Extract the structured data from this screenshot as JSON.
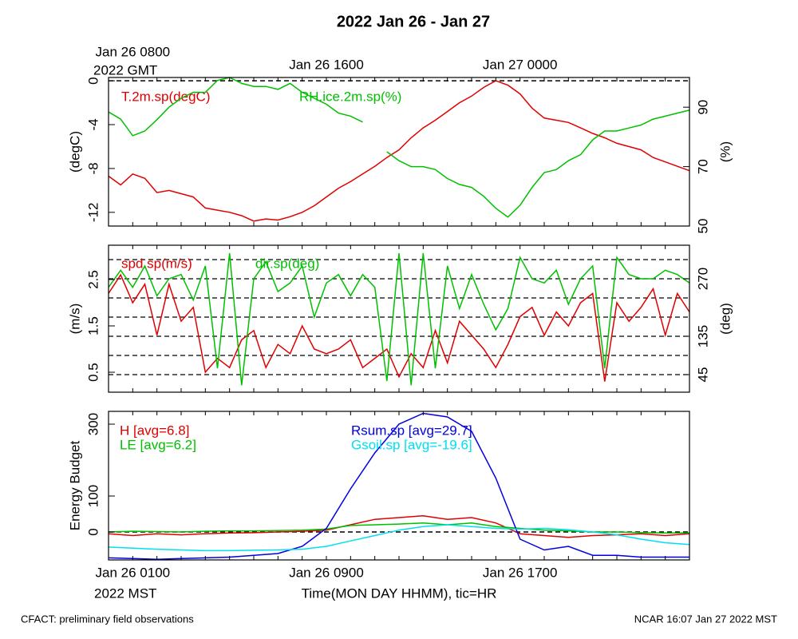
{
  "title": "2022 Jan 26 - Jan 27",
  "footer_left": "CFACT: preliminary field observations",
  "footer_right": "NCAR 16:07 Jan 27 2022 MST",
  "time_axis": {
    "xlabel": "Time(MON DAY HHMM), tic=HR",
    "xlim": [
      0,
      24
    ],
    "xticks": [
      {
        "value": 1,
        "label": "Jan 26 0100"
      },
      {
        "value": 9,
        "label": "Jan 26 0900"
      },
      {
        "value": 17,
        "label": "Jan 26 1700"
      }
    ],
    "x_zone": "2022 MST",
    "x2ticks": [
      {
        "value": 1,
        "label": "Jan 26 0800"
      },
      {
        "value": 9,
        "label": "Jan 26 1600"
      },
      {
        "value": 17,
        "label": "Jan 27 0000"
      }
    ],
    "x2_zone": "2022 GMT",
    "xminor_ticks": [
      0,
      1,
      2,
      3,
      4,
      5,
      6,
      7,
      8,
      9,
      10,
      11,
      12,
      13,
      14,
      15,
      16,
      17,
      18,
      19,
      20,
      21,
      22,
      23,
      24
    ]
  },
  "chart_data": [
    {
      "type": "line",
      "ylabel": "(degC)",
      "ylim": [
        -13.25,
        0.3
      ],
      "yticks": [
        0,
        -4,
        -8,
        -12
      ],
      "ygrid": [
        0
      ],
      "y2label": "(%)",
      "y2lim": [
        50,
        100
      ],
      "y2ticks": [
        50,
        70,
        90
      ],
      "x": [
        0,
        0.5,
        1,
        1.5,
        2,
        2.5,
        3,
        3.5,
        4,
        4.5,
        5,
        5.5,
        6,
        6.5,
        7,
        7.5,
        8,
        8.5,
        9,
        9.5,
        10,
        10.5,
        11,
        11.5,
        12,
        12.5,
        13,
        13.5,
        14,
        14.5,
        15,
        15.5,
        16,
        16.5,
        17,
        17.5,
        18,
        18.5,
        19,
        19.5,
        20,
        20.5,
        21,
        21.5,
        22,
        22.5,
        23,
        23.5,
        24
      ],
      "series": [
        {
          "name": "T.2m.sp(degC)",
          "color": "#e00000",
          "axis": "y",
          "values": [
            -8.7,
            -9.5,
            -8.5,
            -8.9,
            -10.2,
            -10.0,
            -10.3,
            -10.6,
            -11.6,
            -11.8,
            -12.0,
            -12.3,
            -12.8,
            -12.6,
            -12.7,
            -12.4,
            -12.0,
            -11.4,
            -10.6,
            -9.8,
            -9.2,
            -8.5,
            -7.8,
            -7.0,
            -6.3,
            -5.2,
            -4.3,
            -3.6,
            -2.8,
            -2.0,
            -1.4,
            -0.6,
            0.0,
            -0.4,
            -1.2,
            -2.5,
            -3.4,
            -3.6,
            -3.8,
            -4.3,
            -4.8,
            -5.2,
            -5.7,
            -6.0,
            -6.3,
            -7.0,
            -7.4,
            -7.8,
            -8.2
          ]
        },
        {
          "name": "RH.ice.2m.sp(%)",
          "color": "#00c000",
          "axis": "y2",
          "values": [
            88.4,
            86,
            80.4,
            82,
            85.8,
            90,
            93,
            95,
            95,
            99,
            100,
            98,
            97,
            97,
            96,
            98,
            95,
            93,
            91,
            88,
            87,
            85,
            null,
            75,
            72,
            70,
            70,
            69,
            66,
            64,
            63,
            60,
            56,
            53,
            57,
            63,
            68,
            69,
            72,
            74,
            79,
            82,
            82,
            83,
            84,
            86,
            87,
            88,
            89
          ]
        }
      ]
    },
    {
      "type": "line",
      "ylabel": "(m/s)",
      "ylim": [
        0.07,
        3.24
      ],
      "yticks": [
        0.5,
        1.5,
        2.5
      ],
      "y2label": "(deg)",
      "y2lim": [
        3.75,
        348.75
      ],
      "y2ticks": [
        45,
        135,
        270
      ],
      "y2grid": [
        45,
        90,
        135,
        180,
        225,
        270,
        315
      ],
      "x": [
        0,
        0.5,
        1,
        1.5,
        2,
        2.5,
        3,
        3.5,
        4,
        4.5,
        5,
        5.5,
        6,
        6.5,
        7,
        7.5,
        8,
        8.5,
        9,
        9.5,
        10,
        10.5,
        11,
        11.5,
        12,
        12.5,
        13,
        13.5,
        14,
        14.5,
        15,
        15.5,
        16,
        16.5,
        17,
        17.5,
        18,
        18.5,
        19,
        19.5,
        20,
        20.5,
        21,
        21.5,
        22,
        22.5,
        23,
        23.5,
        24
      ],
      "series": [
        {
          "name": "spd.sp(m/s)",
          "color": "#e00000",
          "axis": "y",
          "values": [
            2.2,
            2.6,
            2.0,
            2.4,
            1.3,
            2.4,
            1.6,
            1.9,
            0.5,
            0.8,
            0.6,
            1.2,
            1.4,
            0.6,
            1.1,
            0.9,
            1.5,
            1.0,
            0.9,
            1.0,
            1.2,
            0.6,
            0.8,
            1.0,
            0.4,
            0.9,
            0.6,
            1.4,
            0.7,
            1.6,
            1.3,
            1.0,
            0.6,
            1.1,
            1.7,
            1.9,
            1.3,
            1.8,
            1.5,
            2.0,
            2.2,
            0.3,
            2.0,
            1.6,
            1.9,
            2.3,
            1.3,
            2.2,
            1.8
          ]
        },
        {
          "name": "dir.sp(deg)",
          "color": "#00c000",
          "axis": "y2",
          "values": [
            250,
            290,
            250,
            300,
            230,
            270,
            280,
            220,
            300,
            60,
            330,
            20,
            270,
            310,
            240,
            260,
            300,
            180,
            260,
            280,
            230,
            280,
            250,
            30,
            330,
            20,
            330,
            60,
            300,
            200,
            280,
            210,
            150,
            200,
            320,
            270,
            260,
            290,
            210,
            270,
            300,
            60,
            320,
            280,
            270,
            270,
            290,
            280,
            260
          ]
        }
      ]
    },
    {
      "type": "line",
      "ylabel": "Energy Budget",
      "ylim": [
        -77.8,
        335.6
      ],
      "yticks": [
        0,
        100,
        300
      ],
      "ygrid": [
        0
      ],
      "x": [
        0,
        1,
        2,
        3,
        4,
        5,
        6,
        7,
        8,
        9,
        10,
        11,
        12,
        13,
        14,
        15,
        16,
        17,
        18,
        19,
        20,
        21,
        22,
        23,
        24
      ],
      "series": [
        {
          "name": "H [avg=6.8]",
          "color": "#e00000",
          "axis": "y",
          "values": [
            -5,
            -10,
            -5,
            -8,
            -5,
            -3,
            -2,
            0,
            2,
            5,
            20,
            35,
            40,
            45,
            35,
            40,
            25,
            -5,
            -10,
            -15,
            -10,
            -8,
            -5,
            -10,
            -5
          ]
        },
        {
          "name": "LE [avg=6.2]",
          "color": "#00c000",
          "axis": "y",
          "values": [
            0,
            2,
            1,
            0,
            2,
            3,
            3,
            4,
            5,
            8,
            18,
            20,
            22,
            25,
            20,
            25,
            15,
            10,
            5,
            3,
            0,
            0,
            -2,
            -3,
            -3
          ]
        },
        {
          "name": "Rsum.sp [avg=29.7]",
          "color": "#0000e0",
          "axis": "y",
          "values": [
            -72,
            -74,
            -76,
            -74,
            -72,
            -70,
            -65,
            -60,
            -40,
            10,
            120,
            220,
            300,
            330,
            320,
            280,
            150,
            -20,
            -50,
            -40,
            -65,
            -65,
            -70,
            -70,
            -70
          ]
        },
        {
          "name": "Gsoil.sp [avg=-19.6]",
          "color": "#00e0f0",
          "axis": "y",
          "values": [
            -42,
            -45,
            -48,
            -50,
            -52,
            -52,
            -51,
            -50,
            -48,
            -40,
            -25,
            -10,
            5,
            15,
            20,
            15,
            10,
            8,
            10,
            6,
            0,
            -8,
            -20,
            -30,
            -35
          ]
        }
      ]
    }
  ]
}
